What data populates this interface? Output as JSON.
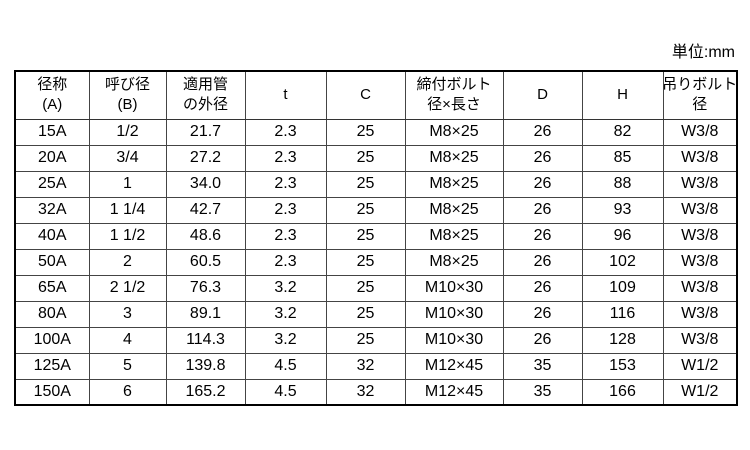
{
  "unit_label": "単位:mm",
  "colors": {
    "background": "#ffffff",
    "outer_border": "#000000",
    "inner_line": "#444444",
    "text": "#000000"
  },
  "table": {
    "headers": [
      {
        "line1": "径称",
        "line2": "(A)"
      },
      {
        "line1": "呼び径",
        "line2": "(B)"
      },
      {
        "line1": "適用管",
        "line2": "の外径"
      },
      {
        "line1": "t",
        "line2": ""
      },
      {
        "line1": "C",
        "line2": ""
      },
      {
        "line1": "締付ボルト",
        "line2": "径×長さ"
      },
      {
        "line1": "D",
        "line2": ""
      },
      {
        "line1": "H",
        "line2": ""
      },
      {
        "line1": "吊りボルト",
        "line2": "径"
      }
    ],
    "rows": [
      [
        "15A",
        "1/2",
        "21.7",
        "2.3",
        "25",
        "M8×25",
        "26",
        "82",
        "W3/8"
      ],
      [
        "20A",
        "3/4",
        "27.2",
        "2.3",
        "25",
        "M8×25",
        "26",
        "85",
        "W3/8"
      ],
      [
        "25A",
        "1",
        "34.0",
        "2.3",
        "25",
        "M8×25",
        "26",
        "88",
        "W3/8"
      ],
      [
        "32A",
        "1 1/4",
        "42.7",
        "2.3",
        "25",
        "M8×25",
        "26",
        "93",
        "W3/8"
      ],
      [
        "40A",
        "1 1/2",
        "48.6",
        "2.3",
        "25",
        "M8×25",
        "26",
        "96",
        "W3/8"
      ],
      [
        "50A",
        "2",
        "60.5",
        "2.3",
        "25",
        "M8×25",
        "26",
        "102",
        "W3/8"
      ],
      [
        "65A",
        "2 1/2",
        "76.3",
        "3.2",
        "25",
        "M10×30",
        "26",
        "109",
        "W3/8"
      ],
      [
        "80A",
        "3",
        "89.1",
        "3.2",
        "25",
        "M10×30",
        "26",
        "116",
        "W3/8"
      ],
      [
        "100A",
        "4",
        "114.3",
        "3.2",
        "25",
        "M10×30",
        "26",
        "128",
        "W3/8"
      ],
      [
        "125A",
        "5",
        "139.8",
        "4.5",
        "32",
        "M12×45",
        "35",
        "153",
        "W1/2"
      ],
      [
        "150A",
        "6",
        "165.2",
        "4.5",
        "32",
        "M12×45",
        "35",
        "166",
        "W1/2"
      ]
    ]
  }
}
